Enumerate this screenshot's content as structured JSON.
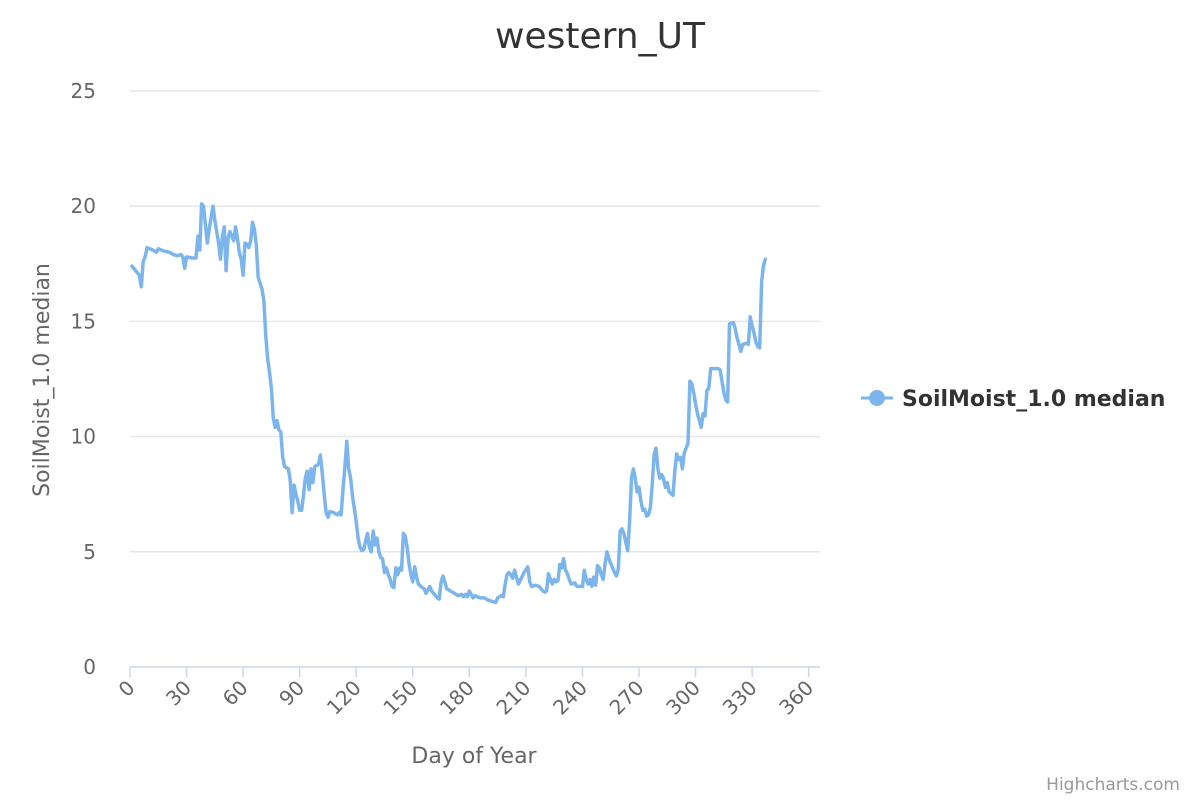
{
  "chart_data": {
    "type": "line",
    "title": "western_UT",
    "xlabel": "Day of Year",
    "ylabel": "SoilMoist_1.0 median",
    "xlim": [
      0,
      366
    ],
    "ylim": [
      0,
      25
    ],
    "x_ticks": [
      0,
      30,
      60,
      90,
      120,
      150,
      180,
      210,
      240,
      270,
      300,
      330,
      360
    ],
    "y_ticks": [
      0,
      5,
      10,
      15,
      20,
      25
    ],
    "grid": true,
    "legend_position": "right",
    "color": "#7cb5ec",
    "series": [
      {
        "name": "SoilMoist_1.0 median",
        "points": [
          [
            1,
            17.4
          ],
          [
            3,
            17.2
          ],
          [
            5,
            17.0
          ],
          [
            6,
            16.5
          ],
          [
            7,
            17.6
          ],
          [
            8,
            17.8
          ],
          [
            9,
            18.2
          ],
          [
            12,
            18.1
          ],
          [
            14,
            18.0
          ],
          [
            15,
            18.15
          ],
          [
            18,
            18.05
          ],
          [
            21,
            18.0
          ],
          [
            23,
            17.9
          ],
          [
            25,
            17.85
          ],
          [
            27,
            17.9
          ],
          [
            28,
            17.8
          ],
          [
            29,
            17.3
          ],
          [
            30,
            17.8
          ],
          [
            33,
            17.75
          ],
          [
            35,
            17.75
          ],
          [
            36,
            18.7
          ],
          [
            37,
            18.1
          ],
          [
            38,
            20.1
          ],
          [
            39,
            20.0
          ],
          [
            40,
            19.2
          ],
          [
            41,
            18.4
          ],
          [
            42,
            19.0
          ],
          [
            44,
            20.0
          ],
          [
            45,
            19.4
          ],
          [
            46,
            18.9
          ],
          [
            47,
            18.4
          ],
          [
            48,
            17.7
          ],
          [
            49,
            18.7
          ],
          [
            50,
            19.1
          ],
          [
            51,
            17.2
          ],
          [
            52,
            18.6
          ],
          [
            53,
            18.9
          ],
          [
            54,
            18.7
          ],
          [
            55,
            18.5
          ],
          [
            56,
            19.1
          ],
          [
            57,
            18.6
          ],
          [
            58,
            18.0
          ],
          [
            59,
            17.7
          ],
          [
            60,
            17.0
          ],
          [
            61,
            18.4
          ],
          [
            62,
            18.35
          ],
          [
            63,
            18.2
          ],
          [
            64,
            18.5
          ],
          [
            65,
            19.3
          ],
          [
            66,
            19.0
          ],
          [
            67,
            18.3
          ],
          [
            68,
            16.9
          ],
          [
            70,
            16.4
          ],
          [
            71,
            15.9
          ],
          [
            72,
            14.4
          ],
          [
            73,
            13.4
          ],
          [
            74,
            12.8
          ],
          [
            75,
            12.1
          ],
          [
            76,
            10.8
          ],
          [
            77,
            10.4
          ],
          [
            78,
            10.7
          ],
          [
            79,
            10.3
          ],
          [
            80,
            10.2
          ],
          [
            81,
            9.1
          ],
          [
            82,
            8.7
          ],
          [
            84,
            8.6
          ],
          [
            85,
            8.1
          ],
          [
            86,
            6.7
          ],
          [
            87,
            7.9
          ],
          [
            88,
            7.5
          ],
          [
            89,
            7.2
          ],
          [
            90,
            6.8
          ],
          [
            91,
            6.8
          ],
          [
            92,
            7.4
          ],
          [
            93,
            8.2
          ],
          [
            94,
            8.5
          ],
          [
            95,
            7.7
          ],
          [
            96,
            8.6
          ],
          [
            97,
            8.0
          ],
          [
            98,
            8.7
          ],
          [
            100,
            8.8
          ],
          [
            101,
            9.2
          ],
          [
            102,
            8.4
          ],
          [
            103,
            7.5
          ],
          [
            104,
            6.7
          ],
          [
            105,
            6.5
          ],
          [
            106,
            6.75
          ],
          [
            108,
            6.7
          ],
          [
            110,
            6.6
          ],
          [
            111,
            6.7
          ],
          [
            112,
            6.6
          ],
          [
            113,
            7.7
          ],
          [
            114,
            8.7
          ],
          [
            115,
            9.8
          ],
          [
            116,
            8.6
          ],
          [
            117,
            8.2
          ],
          [
            118,
            7.4
          ],
          [
            119,
            6.9
          ],
          [
            120,
            6.3
          ],
          [
            121,
            5.6
          ],
          [
            122,
            5.2
          ],
          [
            123,
            5.05
          ],
          [
            124,
            5.1
          ],
          [
            125,
            5.5
          ],
          [
            126,
            5.8
          ],
          [
            127,
            5.2
          ],
          [
            128,
            5.0
          ],
          [
            129,
            5.9
          ],
          [
            130,
            5.3
          ],
          [
            131,
            5.6
          ],
          [
            132,
            5.0
          ],
          [
            133,
            4.75
          ],
          [
            134,
            4.7
          ],
          [
            135,
            4.1
          ],
          [
            136,
            4.3
          ],
          [
            137,
            4.0
          ],
          [
            138,
            3.8
          ],
          [
            139,
            3.5
          ],
          [
            140,
            3.45
          ],
          [
            141,
            4.3
          ],
          [
            142,
            4.0
          ],
          [
            143,
            4.3
          ],
          [
            144,
            4.2
          ],
          [
            145,
            5.8
          ],
          [
            146,
            5.7
          ],
          [
            147,
            5.2
          ],
          [
            148,
            4.5
          ],
          [
            149,
            4.0
          ],
          [
            150,
            3.7
          ],
          [
            151,
            4.35
          ],
          [
            152,
            3.9
          ],
          [
            153,
            3.6
          ],
          [
            155,
            3.45
          ],
          [
            156,
            3.4
          ],
          [
            157,
            3.2
          ],
          [
            158,
            3.35
          ],
          [
            159,
            3.5
          ],
          [
            160,
            3.3
          ],
          [
            161,
            3.2
          ],
          [
            162,
            3.1
          ],
          [
            163,
            3.0
          ],
          [
            164,
            2.95
          ],
          [
            165,
            3.7
          ],
          [
            166,
            3.95
          ],
          [
            167,
            3.7
          ],
          [
            168,
            3.4
          ],
          [
            170,
            3.3
          ],
          [
            172,
            3.2
          ],
          [
            174,
            3.1
          ],
          [
            176,
            3.15
          ],
          [
            177,
            3.05
          ],
          [
            178,
            3.15
          ],
          [
            179,
            3.05
          ],
          [
            180,
            3.3
          ],
          [
            181,
            3.15
          ],
          [
            182,
            3.0
          ],
          [
            183,
            3.1
          ],
          [
            184,
            3.05
          ],
          [
            186,
            3.0
          ],
          [
            188,
            3.0
          ],
          [
            190,
            2.9
          ],
          [
            192,
            2.85
          ],
          [
            194,
            2.8
          ],
          [
            195,
            3.0
          ],
          [
            197,
            3.1
          ],
          [
            198,
            3.05
          ],
          [
            199,
            3.6
          ],
          [
            200,
            4.0
          ],
          [
            201,
            4.1
          ],
          [
            202,
            4.0
          ],
          [
            203,
            3.85
          ],
          [
            204,
            4.2
          ],
          [
            205,
            3.9
          ],
          [
            206,
            3.6
          ],
          [
            207,
            3.75
          ],
          [
            209,
            4.1
          ],
          [
            211,
            4.35
          ],
          [
            212,
            3.7
          ],
          [
            213,
            3.5
          ],
          [
            215,
            3.55
          ],
          [
            217,
            3.5
          ],
          [
            218,
            3.4
          ],
          [
            219,
            3.3
          ],
          [
            220,
            3.25
          ],
          [
            221,
            3.3
          ],
          [
            222,
            4.05
          ],
          [
            223,
            3.8
          ],
          [
            224,
            3.6
          ],
          [
            225,
            3.8
          ],
          [
            226,
            3.7
          ],
          [
            227,
            3.75
          ],
          [
            228,
            4.45
          ],
          [
            229,
            4.3
          ],
          [
            230,
            4.7
          ],
          [
            231,
            4.2
          ],
          [
            232,
            4.05
          ],
          [
            233,
            3.8
          ],
          [
            234,
            3.6
          ],
          [
            236,
            3.65
          ],
          [
            237,
            3.5
          ],
          [
            239,
            3.5
          ],
          [
            240,
            3.5
          ],
          [
            241,
            4.2
          ],
          [
            242,
            3.8
          ],
          [
            243,
            3.6
          ],
          [
            244,
            3.8
          ],
          [
            245,
            3.5
          ],
          [
            246,
            3.9
          ],
          [
            247,
            3.55
          ],
          [
            248,
            4.4
          ],
          [
            249,
            4.3
          ],
          [
            250,
            4.0
          ],
          [
            251,
            3.8
          ],
          [
            252,
            4.5
          ],
          [
            253,
            5.0
          ],
          [
            254,
            4.7
          ],
          [
            255,
            4.5
          ],
          [
            256,
            4.3
          ],
          [
            257,
            4.1
          ],
          [
            258,
            3.95
          ],
          [
            259,
            4.25
          ],
          [
            260,
            5.9
          ],
          [
            261,
            6.0
          ],
          [
            262,
            5.8
          ],
          [
            263,
            5.4
          ],
          [
            264,
            5.05
          ],
          [
            265,
            6.3
          ],
          [
            266,
            8.2
          ],
          [
            267,
            8.6
          ],
          [
            268,
            8.2
          ],
          [
            269,
            7.6
          ],
          [
            270,
            7.8
          ],
          [
            271,
            7.2
          ],
          [
            272,
            6.8
          ],
          [
            273,
            6.85
          ],
          [
            274,
            6.55
          ],
          [
            275,
            6.6
          ],
          [
            276,
            6.9
          ],
          [
            277,
            7.9
          ],
          [
            278,
            9.2
          ],
          [
            279,
            9.5
          ],
          [
            280,
            8.6
          ],
          [
            281,
            8.2
          ],
          [
            282,
            8.35
          ],
          [
            283,
            8.2
          ],
          [
            284,
            7.8
          ],
          [
            285,
            8.0
          ],
          [
            286,
            7.6
          ],
          [
            288,
            7.45
          ],
          [
            289,
            8.5
          ],
          [
            290,
            9.25
          ],
          [
            291,
            9.0
          ],
          [
            292,
            9.1
          ],
          [
            293,
            8.6
          ],
          [
            294,
            9.3
          ],
          [
            295,
            9.5
          ],
          [
            296,
            9.7
          ],
          [
            297,
            12.4
          ],
          [
            298,
            12.3
          ],
          [
            299,
            11.9
          ],
          [
            300,
            11.4
          ],
          [
            301,
            11.0
          ],
          [
            302,
            10.7
          ],
          [
            303,
            10.4
          ],
          [
            304,
            11.0
          ],
          [
            305,
            10.9
          ],
          [
            306,
            12.0
          ],
          [
            307,
            12.1
          ],
          [
            308,
            12.95
          ],
          [
            310,
            12.95
          ],
          [
            312,
            12.95
          ],
          [
            313,
            12.9
          ],
          [
            314,
            12.4
          ],
          [
            315,
            11.9
          ],
          [
            316,
            11.6
          ],
          [
            317,
            11.5
          ],
          [
            318,
            14.9
          ],
          [
            320,
            14.95
          ],
          [
            321,
            14.7
          ],
          [
            322,
            14.3
          ],
          [
            323,
            14.0
          ],
          [
            324,
            13.7
          ],
          [
            325,
            14.0
          ],
          [
            327,
            14.05
          ],
          [
            328,
            14.0
          ],
          [
            329,
            15.2
          ],
          [
            330,
            14.8
          ],
          [
            331,
            14.5
          ],
          [
            332,
            14.1
          ],
          [
            333,
            13.9
          ],
          [
            334,
            13.85
          ],
          [
            335,
            16.7
          ],
          [
            336,
            17.4
          ],
          [
            337,
            17.7
          ]
        ]
      }
    ]
  },
  "credit": "Highcharts.com"
}
